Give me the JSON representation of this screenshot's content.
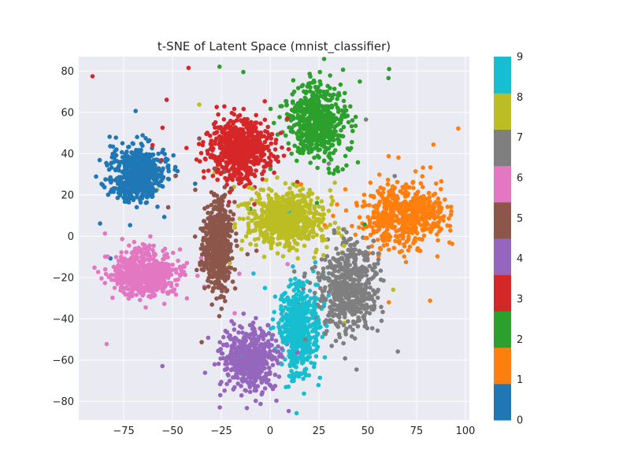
{
  "chart_data": {
    "type": "scatter",
    "title": "t-SNE of Latent Space (mnist_classifier)",
    "xlabel": "",
    "ylabel": "",
    "xlim": [
      -98,
      102
    ],
    "ylim": [
      -89,
      87
    ],
    "x_ticks": [
      -75,
      -50,
      -25,
      0,
      25,
      50,
      75,
      100
    ],
    "x_tick_labels": [
      "−75",
      "−50",
      "−25",
      "0",
      "25",
      "50",
      "75",
      "100"
    ],
    "y_ticks": [
      -80,
      -60,
      -40,
      -20,
      0,
      20,
      40,
      60,
      80
    ],
    "y_tick_labels": [
      "−80",
      "−60",
      "−40",
      "−20",
      "0",
      "20",
      "40",
      "60",
      "80"
    ],
    "grid": true,
    "background": "#eaeaf2",
    "colorbar": {
      "placement": "right",
      "range": [
        0,
        9
      ],
      "ticks": [
        0,
        1,
        2,
        3,
        4,
        5,
        6,
        7,
        8,
        9
      ],
      "tick_labels": [
        "0",
        "1",
        "2",
        "3",
        "4",
        "5",
        "6",
        "7",
        "8",
        "9"
      ]
    },
    "series": [
      {
        "label": "0",
        "color": "#1f77b4",
        "center": [
          -68,
          30
        ],
        "spread": [
          9,
          8
        ],
        "count": 650
      },
      {
        "label": "1",
        "color": "#ff7f0e",
        "center": [
          68,
          10
        ],
        "spread": [
          14,
          10
        ],
        "count": 600
      },
      {
        "label": "2",
        "color": "#2ca02c",
        "center": [
          24,
          55
        ],
        "spread": [
          10,
          12
        ],
        "count": 600
      },
      {
        "label": "3",
        "color": "#d62728",
        "center": [
          -15,
          42
        ],
        "spread": [
          11,
          10
        ],
        "count": 650
      },
      {
        "label": "4",
        "color": "#9467bd",
        "center": [
          -10,
          -60
        ],
        "spread": [
          9,
          10
        ],
        "count": 550
      },
      {
        "label": "5",
        "color": "#8c564b",
        "center": [
          -27,
          -5
        ],
        "spread": [
          5,
          14
        ],
        "count": 600
      },
      {
        "label": "6",
        "color": "#e377c2",
        "center": [
          -65,
          -18
        ],
        "spread": [
          11,
          7
        ],
        "count": 650
      },
      {
        "label": "7",
        "color": "#7f7f7f",
        "center": [
          40,
          -25
        ],
        "spread": [
          10,
          14
        ],
        "count": 550
      },
      {
        "label": "8",
        "color": "#bcbd22",
        "center": [
          8,
          8
        ],
        "spread": [
          13,
          9
        ],
        "count": 700
      },
      {
        "label": "9",
        "color": "#17becf",
        "center": [
          15,
          -45
        ],
        "spread": [
          7,
          14
        ],
        "count": 550
      }
    ]
  }
}
